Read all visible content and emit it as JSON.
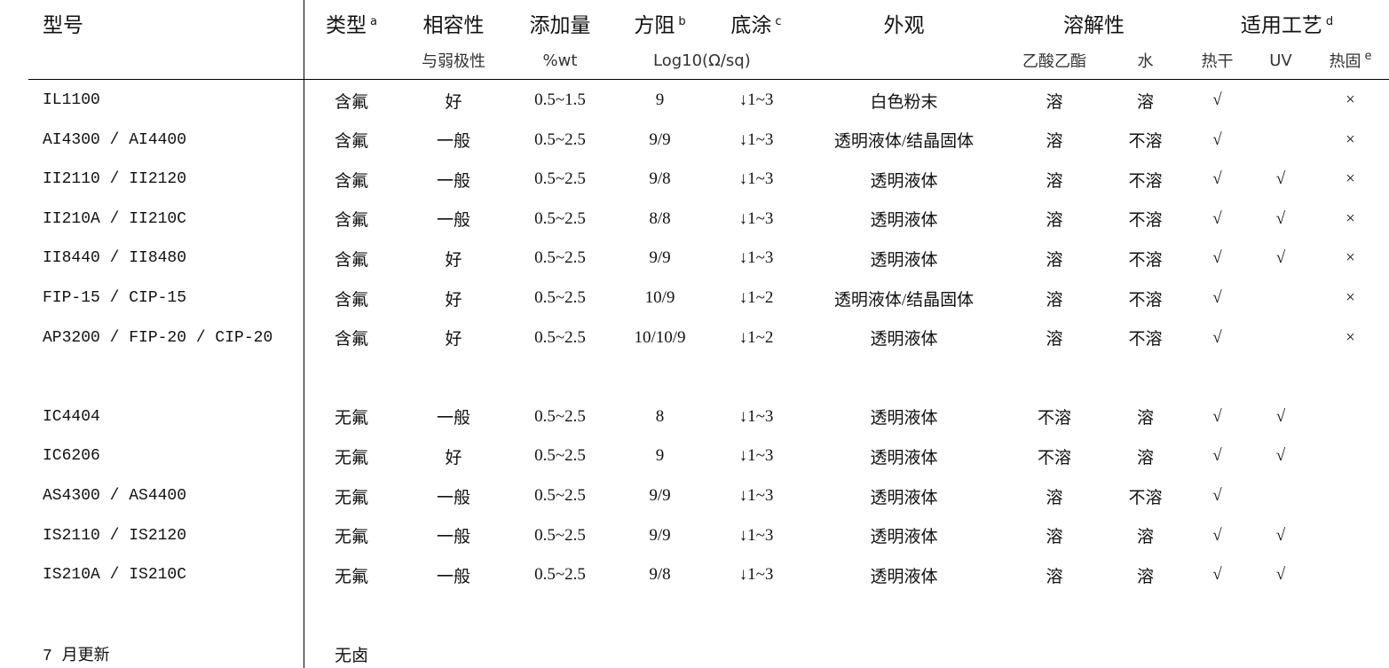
{
  "header": {
    "model": "型号",
    "type": "类型",
    "type_note": "a",
    "compat": "相容性",
    "add": "添加量",
    "resistance": "方阻",
    "resistance_note": "b",
    "primer": "底涂",
    "primer_note": "c",
    "appearance": "外观",
    "solubility": "溶解性",
    "process": "适用工艺",
    "process_note": "d"
  },
  "subheader": {
    "compat": "与弱极性",
    "add": "%wt",
    "resistance": "Log10(Ω/sq)",
    "ea": "乙酸乙酯",
    "water": "水",
    "heat_dry": "热干",
    "uv": "UV",
    "heat_cure": "热固",
    "heat_cure_note": "e"
  },
  "rows": [
    [
      "IL1100",
      "含氟",
      "好",
      "0.5~1.5",
      "9",
      "↓1~3",
      "白色粉末",
      "溶",
      "溶",
      "√",
      "",
      "×"
    ],
    [
      "AI4300 / AI4400",
      "含氟",
      "一般",
      "0.5~2.5",
      "9/9",
      "↓1~3",
      "透明液体/结晶固体",
      "溶",
      "不溶",
      "√",
      "",
      "×"
    ],
    [
      "II2110 / II2120",
      "含氟",
      "一般",
      "0.5~2.5",
      "9/8",
      "↓1~3",
      "透明液体",
      "溶",
      "不溶",
      "√",
      "√",
      "×"
    ],
    [
      "II210A / II210C",
      "含氟",
      "一般",
      "0.5~2.5",
      "8/8",
      "↓1~3",
      "透明液体",
      "溶",
      "不溶",
      "√",
      "√",
      "×"
    ],
    [
      "II8440 / II8480",
      "含氟",
      "好",
      "0.5~2.5",
      "9/9",
      "↓1~3",
      "透明液体",
      "溶",
      "不溶",
      "√",
      "√",
      "×"
    ],
    [
      "FIP-15 / CIP-15",
      "含氟",
      "好",
      "0.5~2.5",
      "10/9",
      "↓1~2",
      "透明液体/结晶固体",
      "溶",
      "不溶",
      "√",
      "",
      "×"
    ],
    [
      "AP3200 / FIP-20 / CIP-20",
      "含氟",
      "好",
      "0.5~2.5",
      "10/10/9",
      "↓1~2",
      "透明液体",
      "溶",
      "不溶",
      "√",
      "",
      "×"
    ],
    null,
    [
      "IC4404",
      "无氟",
      "一般",
      "0.5~2.5",
      "8",
      "↓1~3",
      "透明液体",
      "不溶",
      "溶",
      "√",
      "√",
      ""
    ],
    [
      "IC6206",
      "无氟",
      "好",
      "0.5~2.5",
      "9",
      "↓1~3",
      "透明液体",
      "不溶",
      "溶",
      "√",
      "√",
      ""
    ],
    [
      "AS4300 / AS4400",
      "无氟",
      "一般",
      "0.5~2.5",
      "9/9",
      "↓1~3",
      "透明液体",
      "溶",
      "不溶",
      "√",
      "",
      ""
    ],
    [
      "IS2110 / IS2120",
      "无氟",
      "一般",
      "0.5~2.5",
      "9/9",
      "↓1~3",
      "透明液体",
      "溶",
      "溶",
      "√",
      "√",
      ""
    ],
    [
      "IS210A / IS210C",
      "无氟",
      "一般",
      "0.5~2.5",
      "9/8",
      "↓1~3",
      "透明液体",
      "溶",
      "溶",
      "√",
      "√",
      ""
    ],
    null,
    [
      "7 月更新",
      "无卤",
      "",
      "",
      "",
      "",
      "",
      "",
      "",
      "",
      "",
      ""
    ]
  ]
}
